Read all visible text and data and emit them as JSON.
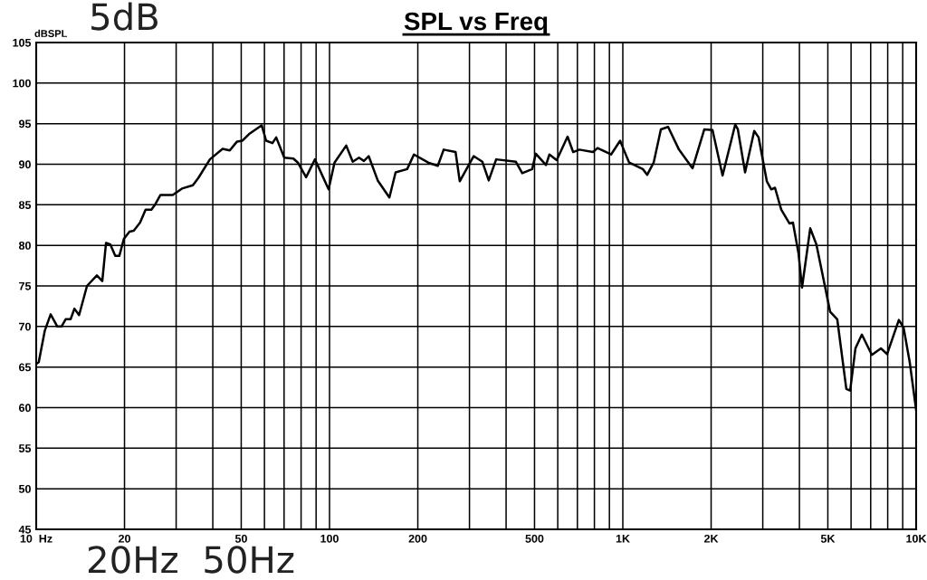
{
  "chart_data": {
    "type": "line",
    "title": "SPL vs Freq",
    "ylabel": "dBSPL",
    "annotations": [
      "5dB",
      "20Hz  50Hz"
    ],
    "log": "x",
    "grid": true,
    "marker": "none",
    "line_style": "solid",
    "xlim": [
      10,
      10000
    ],
    "ylim": [
      45,
      105
    ],
    "xticks": [
      {
        "value": 10,
        "label": "10  Hz"
      },
      20,
      {
        "value": 30,
        "label": null
      },
      {
        "value": 40,
        "label": null
      },
      50,
      {
        "value": 60,
        "label": null
      },
      {
        "value": 70,
        "label": null
      },
      {
        "value": 80,
        "label": null
      },
      {
        "value": 90,
        "label": null
      },
      100,
      200,
      {
        "value": 300,
        "label": null
      },
      {
        "value": 400,
        "label": null
      },
      500,
      {
        "value": 600,
        "label": null
      },
      {
        "value": 700,
        "label": null
      },
      {
        "value": 800,
        "label": null
      },
      {
        "value": 900,
        "label": null
      },
      {
        "value": 1000,
        "label": "1K"
      },
      {
        "value": 2000,
        "label": "2K"
      },
      {
        "value": 3000,
        "label": null
      },
      {
        "value": 4000,
        "label": null
      },
      {
        "value": 5000,
        "label": "5K"
      },
      {
        "value": 6000,
        "label": null
      },
      {
        "value": 7000,
        "label": null
      },
      {
        "value": 8000,
        "label": null
      },
      {
        "value": 9000,
        "label": null
      },
      {
        "value": 10000,
        "label": "10K"
      }
    ],
    "yticks": [
      45,
      50,
      55,
      60,
      65,
      70,
      75,
      80,
      85,
      90,
      95,
      100,
      105
    ],
    "series": [
      {
        "color": "#000000",
        "x": [
          10.1,
          10.2,
          10.7,
          11.2,
          11.8,
          12.2,
          12.6,
          13.1,
          13.5,
          14.0,
          14.9,
          16.1,
          16.8,
          17.3,
          17.9,
          18.6,
          19.2,
          19.9,
          20.8,
          21.5,
          22.6,
          23.6,
          24.7,
          25.5,
          26.5,
          29.2,
          31.4,
          34.2,
          35.7,
          39.1,
          43.2,
          45.7,
          48.4,
          50.5,
          53.1,
          58.7,
          60.8,
          63.9,
          65.8,
          70.1,
          75.3,
          78.0,
          83.2,
          89.2,
          99.3,
          104,
          114,
          120,
          126,
          131,
          136,
          146,
          160,
          168,
          184,
          194,
          217,
          234,
          245,
          269,
          278,
          310,
          332,
          349,
          370,
          432,
          454,
          491,
          505,
          547,
          562,
          595,
          648,
          677,
          711,
          791,
          820,
          912,
          979,
          1007,
          1051,
          1170,
          1211,
          1274,
          1348,
          1427,
          1554,
          1729,
          1896,
          2022,
          2188,
          2417,
          2467,
          2611,
          2805,
          2904,
          3097,
          3207,
          3302,
          3468,
          3698,
          3802,
          3972,
          4083,
          4355,
          4571,
          5093,
          5383,
          5781,
          5957,
          6209,
          6531,
          7063,
          7586,
          7962,
          8730,
          9057,
          9509,
          10000
        ],
        "values": [
          65.5,
          65.6,
          69.5,
          71.5,
          70.0,
          70.0,
          70.9,
          70.9,
          72.2,
          71.4,
          75.0,
          76.3,
          75.6,
          80.3,
          80.1,
          78.7,
          78.7,
          80.8,
          81.7,
          81.8,
          82.8,
          84.4,
          84.4,
          85.1,
          86.2,
          86.2,
          87.0,
          87.4,
          88.3,
          90.6,
          91.9,
          91.7,
          92.8,
          92.9,
          93.7,
          94.8,
          92.9,
          92.6,
          93.3,
          90.8,
          90.7,
          90.2,
          88.4,
          90.6,
          86.9,
          90.2,
          92.3,
          90.3,
          90.8,
          90.4,
          91.0,
          88.0,
          85.9,
          89.0,
          89.4,
          91.2,
          90.2,
          89.8,
          91.8,
          91.5,
          87.9,
          91.0,
          90.3,
          88.0,
          90.6,
          90.3,
          88.9,
          89.4,
          91.3,
          89.9,
          91.2,
          90.5,
          93.4,
          91.5,
          91.8,
          91.5,
          92.0,
          91.2,
          92.9,
          91.8,
          90.2,
          89.4,
          88.7,
          90.2,
          94.3,
          94.6,
          91.8,
          89.5,
          94.3,
          94.2,
          88.6,
          94.9,
          94.3,
          89.0,
          94.1,
          93.3,
          87.9,
          86.9,
          87.1,
          84.4,
          82.7,
          82.8,
          79.0,
          74.8,
          82.1,
          80.1,
          71.8,
          70.9,
          62.3,
          62.1,
          67.3,
          69.0,
          66.5,
          67.3,
          66.6,
          70.8,
          69.9,
          65.6,
          59.7
        ]
      }
    ]
  }
}
